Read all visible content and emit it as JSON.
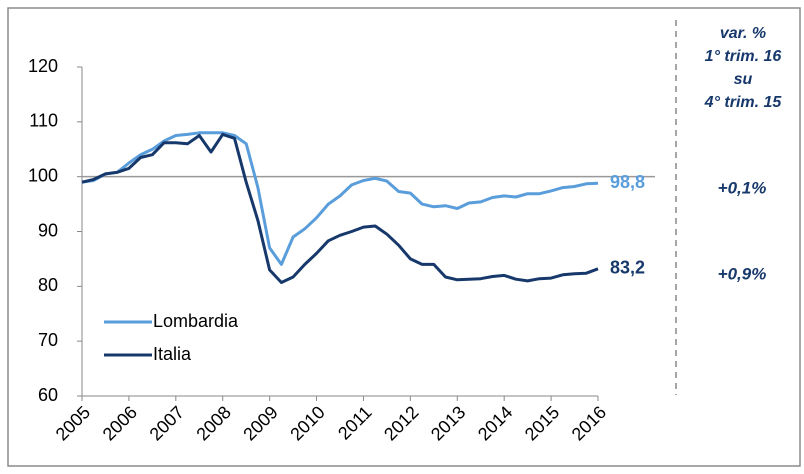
{
  "chart_data": {
    "type": "line",
    "categories": [
      "2005",
      null,
      null,
      null,
      "2006",
      null,
      null,
      null,
      "2007",
      null,
      null,
      null,
      "2008",
      null,
      null,
      null,
      "2009",
      null,
      null,
      null,
      "2010",
      null,
      null,
      null,
      "2011",
      null,
      null,
      null,
      "2012",
      null,
      null,
      null,
      "2013",
      null,
      null,
      null,
      "2014",
      null,
      null,
      null,
      "2015",
      null,
      null,
      null,
      "2016"
    ],
    "series": [
      {
        "name": "Lombardia",
        "color": "#5a9ddb",
        "values": [
          99,
          99.3,
          100.5,
          100.8,
          102.5,
          104,
          105,
          106.5,
          107.5,
          107.7,
          108,
          108,
          108,
          107.5,
          106,
          98,
          87,
          84,
          89,
          90.5,
          92.5,
          95,
          96.5,
          98.5,
          99.3,
          99.7,
          99.2,
          97.3,
          97,
          95,
          94.5,
          94.7,
          94.2,
          95.2,
          95.4,
          96.2,
          96.5,
          96.3,
          96.9,
          96.9,
          97.4,
          98,
          98.2,
          98.7,
          98.8
        ],
        "end_label": 98.8,
        "end_value_label": "98,8"
      },
      {
        "name": "Italia",
        "color": "#17386b",
        "values": [
          99,
          99.5,
          100.5,
          100.8,
          101.5,
          103.5,
          104,
          106.2,
          106.2,
          106,
          107.5,
          104.5,
          107.7,
          107,
          99,
          92,
          83,
          80.7,
          81.7,
          84,
          86,
          88.3,
          89.3,
          90,
          90.8,
          91,
          89.5,
          87.5,
          85,
          84,
          84,
          81.7,
          81.2,
          81.3,
          81.4,
          81.8,
          82,
          81.3,
          81,
          81.4,
          81.5,
          82.1,
          82.3,
          82.4,
          83.2
        ],
        "end_label": 83.2,
        "end_value_label": "83,2"
      }
    ],
    "ylim": [
      60,
      120
    ],
    "yticks": [
      60,
      70,
      80,
      90,
      100,
      110,
      120
    ],
    "reference_line": 100,
    "side_panel": {
      "heading": [
        "var. %",
        "1° trim. 16",
        "su",
        "4° trim. 15"
      ],
      "values": [
        "+0,1%",
        "+0,9%"
      ]
    }
  }
}
